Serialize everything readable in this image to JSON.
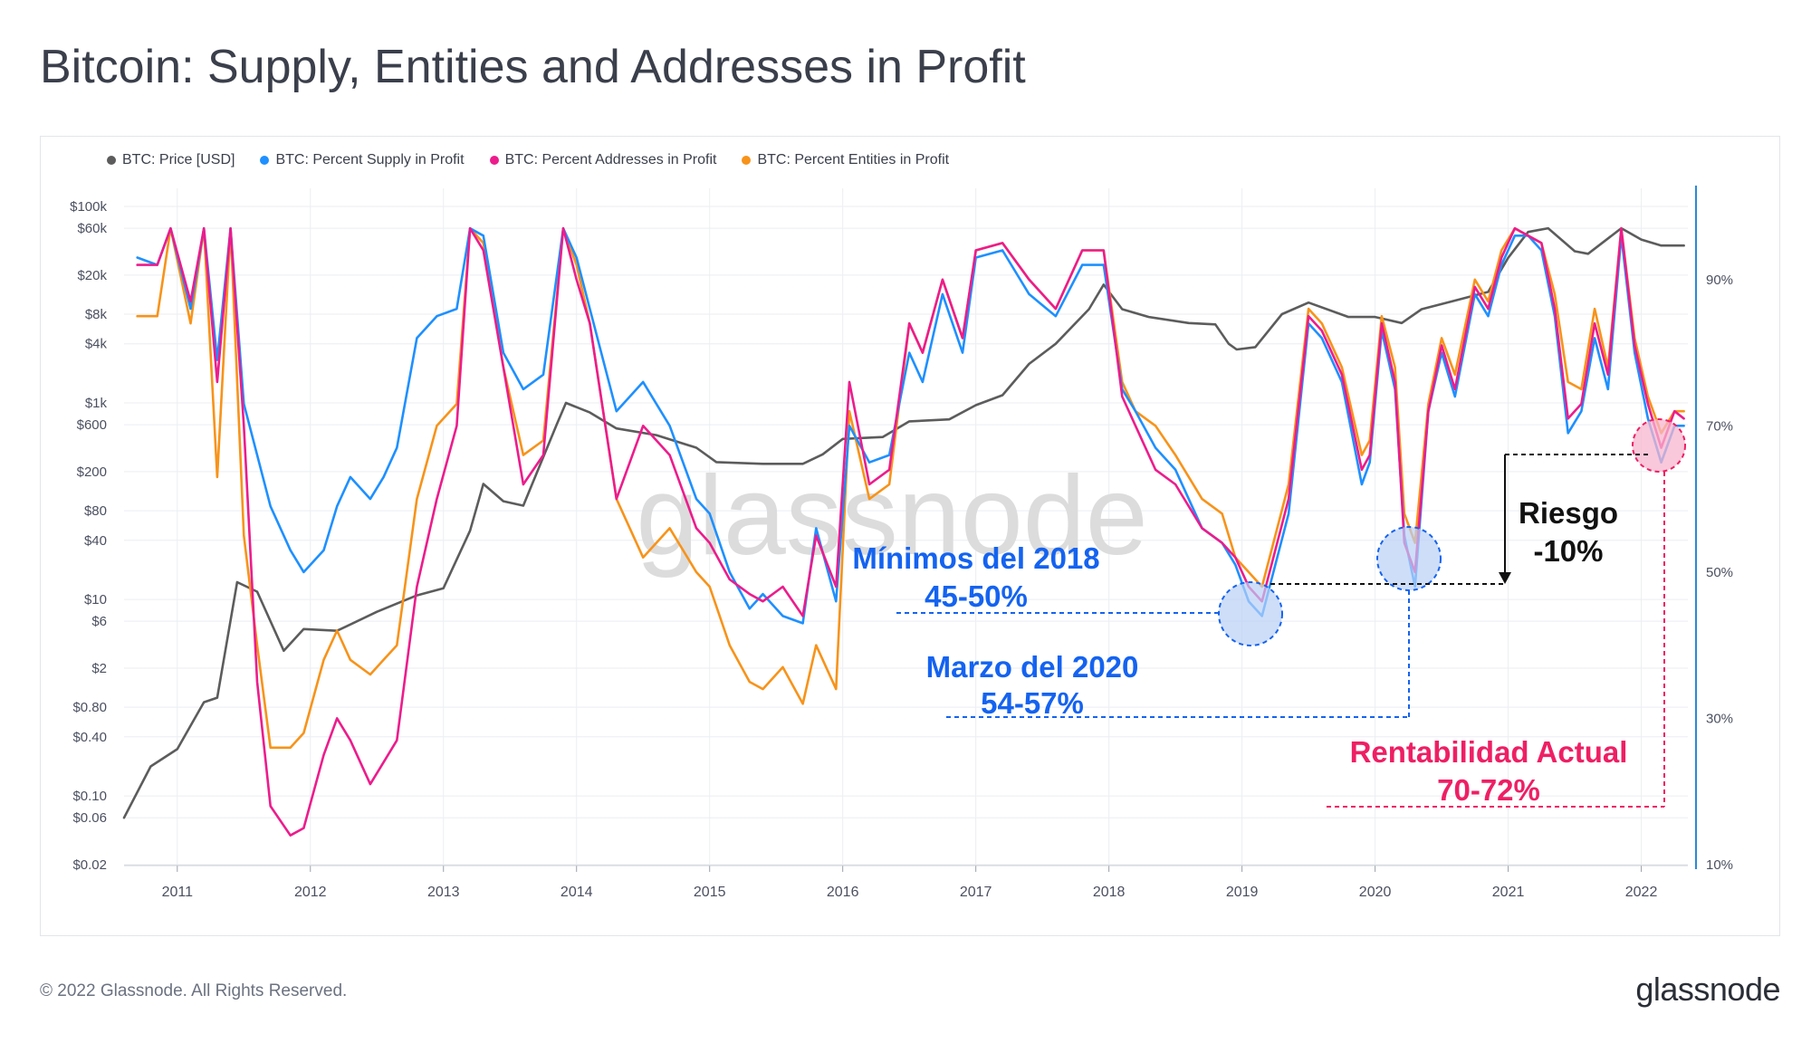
{
  "title": "Bitcoin: Supply, Entities and Addresses in Profit",
  "watermark": "glassnode",
  "footer": {
    "copyright": "© 2022 Glassnode. All Rights Reserved.",
    "brand": "glassnode"
  },
  "colors": {
    "price": "#5c5c5c",
    "supply": "#1e90ff",
    "addresses": "#ec1c8c",
    "entities": "#f7931a",
    "blue_note": "#1463f0",
    "pink_note": "#ee1f64",
    "axis_right": "#2b8ad6"
  },
  "chart_data": {
    "type": "line",
    "legend": [
      {
        "key": "price",
        "label": "BTC: Price [USD]",
        "color": "#5c5c5c"
      },
      {
        "key": "supply",
        "label": "BTC: Percent Supply in Profit",
        "color": "#1e90ff"
      },
      {
        "key": "addresses",
        "label": "BTC: Percent Addresses in Profit",
        "color": "#ec1c8c"
      },
      {
        "key": "entities",
        "label": "BTC: Percent Entities in Profit",
        "color": "#f7931a"
      }
    ],
    "legend_placement": "top-left",
    "x_ticks": [
      "2011",
      "2012",
      "2013",
      "2014",
      "2015",
      "2016",
      "2017",
      "2018",
      "2019",
      "2020",
      "2021",
      "2022"
    ],
    "x_range": [
      2010.6,
      2022.35
    ],
    "y_left_scale": "log",
    "y_left_range": [
      0.02,
      100000
    ],
    "y_left_ticks": [
      {
        "label": "$100k",
        "v": 100000
      },
      {
        "label": "$60k",
        "v": 60000
      },
      {
        "label": "$20k",
        "v": 20000
      },
      {
        "label": "$8k",
        "v": 8000
      },
      {
        "label": "$4k",
        "v": 4000
      },
      {
        "label": "$1k",
        "v": 1000
      },
      {
        "label": "$600",
        "v": 600
      },
      {
        "label": "$200",
        "v": 200
      },
      {
        "label": "$80",
        "v": 80
      },
      {
        "label": "$40",
        "v": 40
      },
      {
        "label": "$10",
        "v": 10
      },
      {
        "label": "$6",
        "v": 6
      },
      {
        "label": "$2",
        "v": 2
      },
      {
        "label": "$0.80",
        "v": 0.8
      },
      {
        "label": "$0.40",
        "v": 0.4
      },
      {
        "label": "$0.10",
        "v": 0.1
      },
      {
        "label": "$0.06",
        "v": 0.06
      },
      {
        "label": "$0.02",
        "v": 0.02
      }
    ],
    "y_right_range": [
      10,
      100
    ],
    "y_right_ticks": [
      {
        "label": "90%",
        "v": 90
      },
      {
        "label": "70%",
        "v": 70
      },
      {
        "label": "50%",
        "v": 50
      },
      {
        "label": "30%",
        "v": 30
      },
      {
        "label": "10%",
        "v": 10
      }
    ],
    "grid": true,
    "series": [
      {
        "name": "BTC: Price [USD]",
        "key": "price",
        "axis": "left",
        "x": [
          2010.6,
          2010.8,
          2011.0,
          2011.2,
          2011.3,
          2011.45,
          2011.6,
          2011.8,
          2011.95,
          2012.2,
          2012.5,
          2012.8,
          2013.0,
          2013.2,
          2013.3,
          2013.45,
          2013.6,
          2013.85,
          2013.92,
          2014.1,
          2014.3,
          2014.6,
          2014.9,
          2015.05,
          2015.4,
          2015.7,
          2015.85,
          2016.0,
          2016.3,
          2016.5,
          2016.8,
          2017.0,
          2017.2,
          2017.4,
          2017.6,
          2017.85,
          2017.96,
          2018.1,
          2018.3,
          2018.6,
          2018.8,
          2018.9,
          2018.96,
          2019.1,
          2019.3,
          2019.5,
          2019.8,
          2020.0,
          2020.2,
          2020.35,
          2020.6,
          2020.85,
          2021.0,
          2021.15,
          2021.3,
          2021.5,
          2021.6,
          2021.85,
          2022.0,
          2022.15,
          2022.32
        ],
        "values": [
          0.06,
          0.2,
          0.3,
          0.9,
          1,
          15,
          12,
          3,
          5,
          4.8,
          7.5,
          11,
          13,
          50,
          150,
          100,
          90,
          600,
          1000,
          800,
          550,
          470,
          350,
          250,
          240,
          240,
          300,
          430,
          450,
          650,
          680,
          950,
          1200,
          2500,
          4000,
          9000,
          16000,
          9000,
          7500,
          6500,
          6300,
          4000,
          3500,
          3700,
          8000,
          10500,
          7500,
          7500,
          6500,
          9000,
          11000,
          13500,
          30000,
          55000,
          60000,
          35000,
          33000,
          60000,
          46000,
          40000,
          40000
        ]
      },
      {
        "name": "BTC: Percent Supply in Profit",
        "key": "supply",
        "axis": "right",
        "x": [
          2010.7,
          2010.85,
          2010.95,
          2011.1,
          2011.2,
          2011.3,
          2011.4,
          2011.5,
          2011.6,
          2011.7,
          2011.85,
          2011.95,
          2012.1,
          2012.2,
          2012.3,
          2012.45,
          2012.55,
          2012.65,
          2012.8,
          2012.95,
          2013.1,
          2013.2,
          2013.3,
          2013.45,
          2013.6,
          2013.75,
          2013.9,
          2014.0,
          2014.1,
          2014.3,
          2014.5,
          2014.7,
          2014.9,
          2015.0,
          2015.15,
          2015.3,
          2015.4,
          2015.55,
          2015.7,
          2015.8,
          2015.95,
          2016.05,
          2016.2,
          2016.35,
          2016.5,
          2016.6,
          2016.75,
          2016.9,
          2017.0,
          2017.2,
          2017.4,
          2017.6,
          2017.8,
          2017.96,
          2018.1,
          2018.2,
          2018.35,
          2018.5,
          2018.7,
          2018.85,
          2018.95,
          2019.05,
          2019.15,
          2019.35,
          2019.5,
          2019.6,
          2019.75,
          2019.9,
          2019.96,
          2020.05,
          2020.15,
          2020.22,
          2020.3,
          2020.4,
          2020.5,
          2020.6,
          2020.75,
          2020.85,
          2020.95,
          2021.05,
          2021.15,
          2021.25,
          2021.35,
          2021.45,
          2021.55,
          2021.65,
          2021.75,
          2021.85,
          2021.95,
          2022.05,
          2022.15,
          2022.25,
          2022.32
        ],
        "values": [
          93,
          92,
          97,
          86,
          97,
          79,
          97,
          73,
          66,
          59,
          53,
          50,
          53,
          59,
          63,
          60,
          63,
          67,
          82,
          85,
          86,
          97,
          96,
          80,
          75,
          77,
          97,
          93,
          86,
          72,
          76,
          70,
          60,
          58,
          50,
          45,
          47,
          44,
          43,
          56,
          46,
          70,
          65,
          66,
          80,
          76,
          88,
          80,
          93,
          94,
          88,
          85,
          92,
          92,
          75,
          72,
          67,
          64,
          56,
          54,
          51,
          46,
          44,
          58,
          84,
          82,
          76,
          62,
          65,
          83,
          75,
          55,
          48,
          72,
          80,
          74,
          88,
          85,
          92,
          96,
          96,
          94,
          85,
          69,
          72,
          82,
          75,
          96,
          80,
          71,
          65,
          70,
          70
        ]
      },
      {
        "name": "BTC: Percent Addresses in Profit",
        "key": "addresses",
        "axis": "right",
        "x": [
          2010.7,
          2010.85,
          2010.95,
          2011.1,
          2011.2,
          2011.3,
          2011.4,
          2011.5,
          2011.6,
          2011.7,
          2011.85,
          2011.95,
          2012.1,
          2012.2,
          2012.3,
          2012.45,
          2012.55,
          2012.65,
          2012.8,
          2012.95,
          2013.1,
          2013.2,
          2013.3,
          2013.45,
          2013.6,
          2013.75,
          2013.9,
          2014.0,
          2014.1,
          2014.3,
          2014.5,
          2014.7,
          2014.9,
          2015.0,
          2015.15,
          2015.3,
          2015.4,
          2015.55,
          2015.7,
          2015.8,
          2015.95,
          2016.05,
          2016.2,
          2016.35,
          2016.5,
          2016.6,
          2016.75,
          2016.9,
          2017.0,
          2017.2,
          2017.4,
          2017.6,
          2017.8,
          2017.96,
          2018.1,
          2018.2,
          2018.35,
          2018.5,
          2018.7,
          2018.85,
          2018.95,
          2019.05,
          2019.15,
          2019.35,
          2019.5,
          2019.6,
          2019.75,
          2019.9,
          2019.96,
          2020.05,
          2020.15,
          2020.22,
          2020.3,
          2020.4,
          2020.5,
          2020.6,
          2020.75,
          2020.85,
          2020.95,
          2021.05,
          2021.15,
          2021.25,
          2021.35,
          2021.45,
          2021.55,
          2021.65,
          2021.75,
          2021.85,
          2021.95,
          2022.05,
          2022.15,
          2022.25,
          2022.32
        ],
        "values": [
          92,
          92,
          97,
          87,
          97,
          76,
          97,
          70,
          35,
          18,
          14,
          15,
          25,
          30,
          27,
          21,
          24,
          27,
          48,
          60,
          70,
          97,
          94,
          78,
          62,
          66,
          97,
          90,
          84,
          60,
          70,
          66,
          56,
          54,
          49,
          47,
          46,
          48,
          44,
          55,
          48,
          76,
          62,
          64,
          84,
          80,
          90,
          82,
          94,
          95,
          90,
          86,
          94,
          94,
          74,
          70,
          64,
          62,
          56,
          54,
          52,
          48,
          46,
          60,
          85,
          83,
          77,
          64,
          66,
          84,
          76,
          54,
          50,
          72,
          81,
          75,
          89,
          86,
          93,
          97,
          96,
          95,
          86,
          71,
          73,
          84,
          77,
          97,
          81,
          73,
          67,
          72,
          71
        ]
      },
      {
        "name": "BTC: Percent Entities in Profit",
        "key": "entities",
        "axis": "right",
        "x": [
          2010.7,
          2010.85,
          2010.95,
          2011.1,
          2011.2,
          2011.3,
          2011.4,
          2011.5,
          2011.6,
          2011.7,
          2011.85,
          2011.95,
          2012.1,
          2012.2,
          2012.3,
          2012.45,
          2012.55,
          2012.65,
          2012.8,
          2012.95,
          2013.1,
          2013.2,
          2013.3,
          2013.45,
          2013.6,
          2013.75,
          2013.9,
          2014.0,
          2014.1,
          2014.3,
          2014.5,
          2014.7,
          2014.9,
          2015.0,
          2015.15,
          2015.3,
          2015.4,
          2015.55,
          2015.7,
          2015.8,
          2015.95,
          2016.05,
          2016.2,
          2016.35,
          2016.5,
          2016.6,
          2016.75,
          2016.9,
          2017.0,
          2017.2,
          2017.4,
          2017.6,
          2017.8,
          2017.96,
          2018.1,
          2018.2,
          2018.35,
          2018.5,
          2018.7,
          2018.85,
          2018.95,
          2019.05,
          2019.15,
          2019.35,
          2019.5,
          2019.6,
          2019.75,
          2019.9,
          2019.96,
          2020.05,
          2020.15,
          2020.22,
          2020.3,
          2020.4,
          2020.5,
          2020.6,
          2020.75,
          2020.85,
          2020.95,
          2021.05,
          2021.15,
          2021.25,
          2021.35,
          2021.45,
          2021.55,
          2021.65,
          2021.75,
          2021.85,
          2021.95,
          2022.05,
          2022.15,
          2022.25,
          2022.32
        ],
        "values": [
          85,
          85,
          97,
          84,
          97,
          63,
          97,
          55,
          40,
          26,
          26,
          28,
          38,
          42,
          38,
          36,
          38,
          40,
          60,
          70,
          73,
          97,
          95,
          78,
          66,
          68,
          97,
          92,
          84,
          60,
          52,
          56,
          50,
          48,
          40,
          35,
          34,
          37,
          32,
          40,
          34,
          72,
          60,
          62,
          84,
          80,
          90,
          82,
          94,
          95,
          90,
          86,
          94,
          94,
          76,
          72,
          70,
          66,
          60,
          58,
          52,
          50,
          48,
          62,
          86,
          84,
          78,
          66,
          68,
          85,
          78,
          58,
          54,
          73,
          82,
          77,
          90,
          87,
          94,
          97,
          96,
          95,
          88,
          76,
          75,
          86,
          78,
          97,
          82,
          74,
          69,
          72,
          72
        ]
      }
    ]
  },
  "annotations": {
    "min2018": {
      "line1": "Mínimos del 2018",
      "line2": "45-50%"
    },
    "mar2020": {
      "line1": "Marzo del 2020",
      "line2": "54-57%"
    },
    "riesgo": {
      "line1": "Riesgo",
      "line2": "-10%"
    },
    "current": {
      "line1": "Rentabilidad Actual",
      "line2": "70-72%"
    }
  }
}
